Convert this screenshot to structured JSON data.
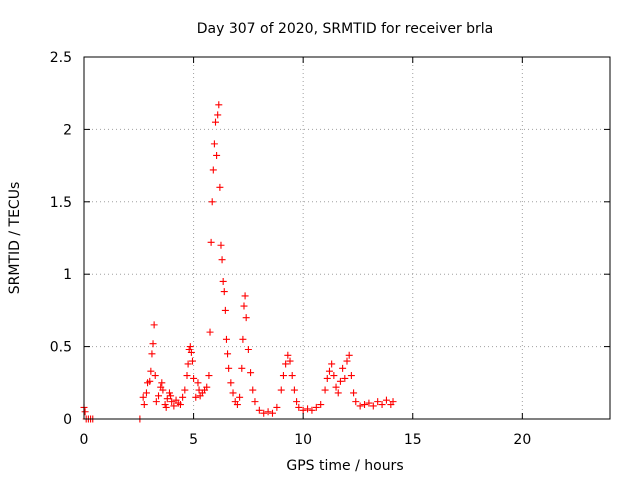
{
  "chart_data": {
    "type": "scatter",
    "title": "Day 307 of 2020, SRMTID for receiver brla",
    "xlabel": "GPS time / hours",
    "ylabel": "SRMTID / TECUs",
    "xlim": [
      0,
      24
    ],
    "ylim": [
      0,
      2.5
    ],
    "xticks": [
      0,
      5,
      10,
      15,
      20
    ],
    "xtick_labels": [
      "0",
      "5",
      "10",
      "15",
      "20"
    ],
    "yticks": [
      0,
      0.5,
      1,
      1.5,
      2,
      2.5
    ],
    "ytick_labels": [
      "0",
      "0.5",
      "1",
      "1.5",
      "2",
      "2.5"
    ],
    "grid": true,
    "marker": "+",
    "color": "#ff0000",
    "series": [
      {
        "name": "brla",
        "x": [
          0.0,
          0.05,
          0.1,
          0.2,
          0.3,
          0.4,
          2.55,
          2.7,
          2.75,
          2.85,
          2.9,
          3.0,
          3.05,
          3.1,
          3.15,
          3.2,
          3.25,
          3.3,
          3.4,
          3.5,
          3.55,
          3.6,
          3.7,
          3.75,
          3.8,
          3.9,
          3.95,
          4.0,
          4.1,
          4.2,
          4.3,
          4.4,
          4.5,
          4.6,
          4.7,
          4.75,
          4.8,
          4.85,
          4.9,
          4.95,
          5.0,
          5.1,
          5.2,
          5.25,
          5.3,
          5.4,
          5.5,
          5.6,
          5.7,
          5.75,
          5.8,
          5.85,
          5.9,
          5.95,
          6.0,
          6.05,
          6.1,
          6.15,
          6.2,
          6.25,
          6.3,
          6.35,
          6.4,
          6.45,
          6.5,
          6.55,
          6.6,
          6.7,
          6.8,
          6.9,
          7.0,
          7.1,
          7.2,
          7.25,
          7.3,
          7.35,
          7.4,
          7.5,
          7.6,
          7.7,
          7.8,
          8.0,
          8.2,
          8.4,
          8.6,
          8.8,
          9.0,
          9.1,
          9.2,
          9.3,
          9.4,
          9.5,
          9.6,
          9.7,
          9.8,
          10.0,
          10.2,
          10.4,
          10.6,
          10.8,
          11.0,
          11.1,
          11.2,
          11.3,
          11.4,
          11.5,
          11.6,
          11.7,
          11.8,
          11.9,
          12.0,
          12.1,
          12.2,
          12.3,
          12.4,
          12.6,
          12.8,
          13.0,
          13.2,
          13.4,
          13.6,
          13.8,
          14.0,
          14.1
        ],
        "y": [
          0.08,
          0.05,
          0.0,
          0.0,
          0.0,
          0.0,
          0.0,
          0.15,
          0.1,
          0.18,
          0.25,
          0.26,
          0.33,
          0.45,
          0.52,
          0.65,
          0.3,
          0.12,
          0.16,
          0.22,
          0.25,
          0.2,
          0.1,
          0.08,
          0.14,
          0.18,
          0.16,
          0.12,
          0.09,
          0.13,
          0.11,
          0.1,
          0.15,
          0.2,
          0.3,
          0.38,
          0.48,
          0.5,
          0.46,
          0.4,
          0.28,
          0.15,
          0.25,
          0.2,
          0.16,
          0.18,
          0.2,
          0.22,
          0.3,
          0.6,
          1.22,
          1.5,
          1.72,
          1.9,
          2.05,
          1.82,
          2.1,
          2.17,
          1.6,
          1.2,
          1.1,
          0.95,
          0.88,
          0.75,
          0.55,
          0.45,
          0.35,
          0.25,
          0.18,
          0.12,
          0.1,
          0.15,
          0.35,
          0.55,
          0.78,
          0.85,
          0.7,
          0.48,
          0.32,
          0.2,
          0.12,
          0.06,
          0.04,
          0.05,
          0.04,
          0.08,
          0.2,
          0.3,
          0.38,
          0.44,
          0.4,
          0.3,
          0.2,
          0.12,
          0.08,
          0.06,
          0.07,
          0.06,
          0.08,
          0.1,
          0.2,
          0.28,
          0.33,
          0.38,
          0.3,
          0.22,
          0.18,
          0.26,
          0.35,
          0.28,
          0.4,
          0.44,
          0.3,
          0.18,
          0.12,
          0.09,
          0.1,
          0.11,
          0.09,
          0.12,
          0.1,
          0.13,
          0.1,
          0.12
        ]
      }
    ]
  }
}
